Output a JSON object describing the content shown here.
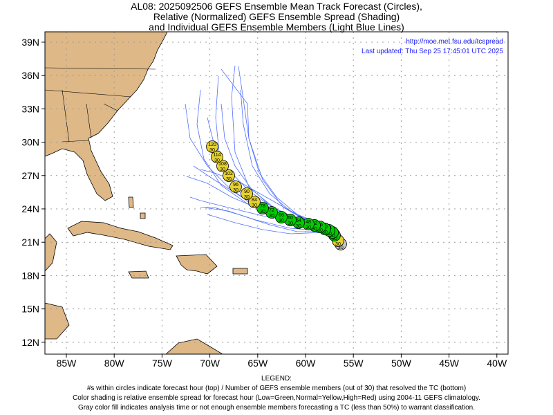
{
  "title": [
    "AL08: 2025092506 GEFS Ensemble Mean Track Forecast (Circles),",
    "Relative (Normalized) GEFS Ensemble Spread (Shading)",
    "and Individual GEFS Ensemble Members (Light Blue Lines)"
  ],
  "credit": {
    "url": "http://moe.met.fsu.edu/tcspread",
    "updated": "Last updated: Thu Sep 25 17:45:01 UTC 2025"
  },
  "axes": {
    "lon_labels": [
      "85W",
      "80W",
      "75W",
      "70W",
      "65W",
      "60W",
      "55W",
      "50W",
      "45W",
      "40W"
    ],
    "lat_labels": [
      "39N",
      "36N",
      "33N",
      "30N",
      "27N",
      "24N",
      "21N",
      "18N",
      "15N",
      "12N"
    ]
  },
  "colors": {
    "low": "#00cc00",
    "normal": "#e6d22e",
    "gray": "#c8c8c8",
    "land": "#deb887",
    "member": "#4f6fff"
  },
  "track": [
    {
      "hour": "0",
      "members": "30",
      "lon": -56.32,
      "lat": 20.83,
      "shade": "gray"
    },
    {
      "hour": "6",
      "members": "30",
      "lon": -56.6,
      "lat": 21.14,
      "shade": "normal"
    },
    {
      "hour": "12",
      "members": "30",
      "lon": -56.97,
      "lat": 21.63,
      "shade": "low"
    },
    {
      "hour": "18",
      "members": "30",
      "lon": -57.18,
      "lat": 21.88,
      "shade": "low"
    },
    {
      "hour": "24",
      "members": "30",
      "lon": -57.54,
      "lat": 22.07,
      "shade": "low"
    },
    {
      "hour": "30",
      "members": "30",
      "lon": -57.98,
      "lat": 22.2,
      "shade": "low"
    },
    {
      "hour": "36",
      "members": "30",
      "lon": -58.48,
      "lat": 22.38,
      "shade": "low"
    },
    {
      "hour": "42",
      "members": "30",
      "lon": -59.06,
      "lat": 22.51,
      "shade": "low"
    },
    {
      "hour": "48",
      "members": "30",
      "lon": -59.71,
      "lat": 22.63,
      "shade": "low"
    },
    {
      "hour": "54",
      "members": "30",
      "lon": -60.72,
      "lat": 22.76,
      "shade": "low"
    },
    {
      "hour": "60",
      "members": "30",
      "lon": -61.59,
      "lat": 23.0,
      "shade": "low"
    },
    {
      "hour": "66",
      "members": "30",
      "lon": -62.53,
      "lat": 23.25,
      "shade": "low"
    },
    {
      "hour": "72",
      "members": "30",
      "lon": -63.54,
      "lat": 23.69,
      "shade": "low"
    },
    {
      "hour": "78",
      "members": "30",
      "lon": -64.48,
      "lat": 24.06,
      "shade": "low"
    },
    {
      "hour": "84",
      "members": "30",
      "lon": -65.35,
      "lat": 24.62,
      "shade": "normal"
    },
    {
      "hour": "90",
      "members": "30",
      "lon": -66.14,
      "lat": 25.37,
      "shade": "normal"
    },
    {
      "hour": "96",
      "members": "30",
      "lon": -67.3,
      "lat": 25.99,
      "shade": "normal"
    },
    {
      "hour": "102",
      "members": "30",
      "lon": -68.02,
      "lat": 26.99,
      "shade": "normal"
    },
    {
      "hour": "108",
      "members": "30",
      "lon": -68.67,
      "lat": 27.86,
      "shade": "normal"
    },
    {
      "hour": "114",
      "members": "30",
      "lon": -69.25,
      "lat": 28.67,
      "shade": "normal"
    },
    {
      "hour": "120",
      "members": "30",
      "lon": -69.75,
      "lat": 29.6,
      "shade": "normal"
    }
  ],
  "legend": {
    "heading": "LEGEND:",
    "lines": [
      "#s within circles indicate forecast hour (top) / Number of GEFS ensemble members (out of 30) that resolved the TC (bottom)",
      "Color shading is relative ensemble spread for forecast hour (Low=Green,Normal=Yellow,High=Red) using 2004-11 GEFS climatology.",
      "Gray color fill indicates analysis time or not enough ensemble members forecasting a TC (less than 50%) to warrant classification."
    ]
  }
}
